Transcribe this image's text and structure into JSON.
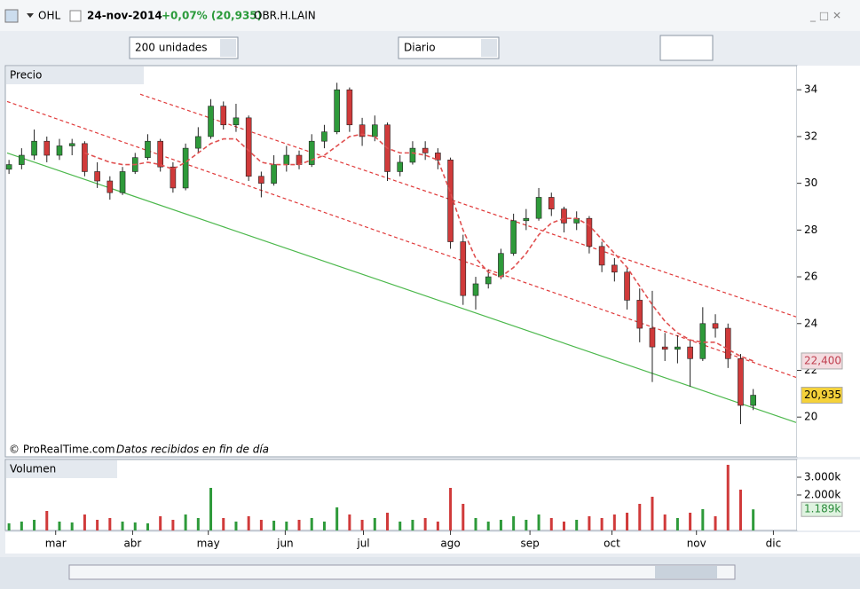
{
  "header": {
    "symbol": "OHL",
    "date": "24-nov-2014",
    "change": "+0,07% (20,935)",
    "code": "OBR.H.LAIN"
  },
  "toolbar": {
    "units": "200 unidades",
    "period": "Diario"
  },
  "panels": {
    "price": "Precio",
    "volume": "Volumen",
    "credit": "© ProRealTime.com",
    "note": "Datos recibidos en fin de día"
  },
  "chart_data": {
    "type": "candlestick",
    "up_color": "#2e9a3a",
    "down_color": "#d03a3a",
    "candles": [
      [
        30.6,
        31.0,
        30.4,
        30.8
      ],
      [
        30.8,
        31.5,
        30.6,
        31.2
      ],
      [
        31.2,
        32.3,
        31.0,
        31.8
      ],
      [
        31.8,
        32.0,
        30.9,
        31.2
      ],
      [
        31.2,
        31.9,
        31.0,
        31.6
      ],
      [
        31.6,
        31.9,
        31.2,
        31.7
      ],
      [
        31.7,
        31.8,
        30.3,
        30.5
      ],
      [
        30.5,
        30.9,
        29.8,
        30.1
      ],
      [
        30.1,
        30.3,
        29.3,
        29.6
      ],
      [
        29.6,
        30.7,
        29.5,
        30.5
      ],
      [
        30.5,
        31.3,
        30.4,
        31.1
      ],
      [
        31.1,
        32.1,
        31.0,
        31.8
      ],
      [
        31.8,
        31.9,
        30.5,
        30.7
      ],
      [
        30.7,
        30.9,
        29.6,
        29.8
      ],
      [
        29.8,
        31.7,
        29.7,
        31.5
      ],
      [
        31.5,
        32.4,
        31.3,
        32.0
      ],
      [
        32.0,
        33.6,
        31.9,
        33.3
      ],
      [
        33.3,
        33.5,
        32.3,
        32.5
      ],
      [
        32.5,
        33.4,
        32.2,
        32.8
      ],
      [
        32.8,
        32.9,
        30.1,
        30.3
      ],
      [
        30.3,
        30.5,
        29.4,
        30.0
      ],
      [
        30.0,
        31.2,
        29.9,
        30.8
      ],
      [
        30.8,
        31.6,
        30.5,
        31.2
      ],
      [
        31.2,
        31.4,
        30.6,
        30.8
      ],
      [
        30.8,
        32.1,
        30.7,
        31.8
      ],
      [
        31.8,
        32.5,
        31.5,
        32.2
      ],
      [
        32.2,
        34.3,
        32.1,
        34.0
      ],
      [
        34.0,
        34.1,
        32.2,
        32.5
      ],
      [
        32.5,
        32.8,
        31.6,
        32.0
      ],
      [
        32.0,
        32.9,
        31.8,
        32.5
      ],
      [
        32.5,
        32.6,
        30.1,
        30.5
      ],
      [
        30.5,
        31.2,
        30.3,
        30.9
      ],
      [
        30.9,
        31.8,
        30.8,
        31.5
      ],
      [
        31.5,
        31.8,
        31.0,
        31.3
      ],
      [
        31.3,
        31.5,
        30.6,
        31.0
      ],
      [
        31.0,
        31.1,
        27.2,
        27.5
      ],
      [
        27.5,
        27.8,
        24.8,
        25.2
      ],
      [
        25.2,
        26.0,
        24.6,
        25.7
      ],
      [
        25.7,
        26.3,
        25.5,
        26.0
      ],
      [
        26.0,
        27.2,
        25.9,
        27.0
      ],
      [
        27.0,
        28.7,
        26.9,
        28.4
      ],
      [
        28.4,
        28.9,
        28.0,
        28.5
      ],
      [
        28.5,
        29.8,
        28.4,
        29.4
      ],
      [
        29.4,
        29.6,
        28.6,
        28.9
      ],
      [
        28.9,
        29.0,
        27.9,
        28.3
      ],
      [
        28.3,
        28.8,
        28.0,
        28.5
      ],
      [
        28.5,
        28.6,
        27.0,
        27.3
      ],
      [
        27.3,
        27.5,
        26.2,
        26.5
      ],
      [
        26.5,
        26.8,
        25.8,
        26.2
      ],
      [
        26.2,
        26.4,
        24.6,
        25.0
      ],
      [
        25.0,
        25.5,
        23.2,
        23.8
      ],
      [
        23.8,
        25.4,
        21.5,
        23.0
      ],
      [
        23.0,
        23.6,
        22.4,
        22.9
      ],
      [
        22.9,
        23.5,
        22.3,
        23.0
      ],
      [
        23.0,
        23.3,
        21.3,
        22.5
      ],
      [
        22.5,
        24.7,
        22.4,
        24.0
      ],
      [
        24.0,
        24.4,
        23.4,
        23.8
      ],
      [
        23.8,
        24.0,
        22.1,
        22.5
      ],
      [
        22.5,
        22.7,
        19.7,
        20.5
      ],
      [
        20.5,
        21.2,
        20.3,
        20.935
      ]
    ],
    "moving_average": {
      "color": "#e05050",
      "values": [
        null,
        null,
        null,
        null,
        null,
        null,
        31.3,
        31.1,
        30.9,
        30.8,
        30.8,
        30.9,
        30.8,
        30.6,
        30.9,
        31.3,
        31.7,
        31.9,
        31.9,
        31.4,
        30.9,
        30.8,
        30.8,
        30.8,
        31.0,
        31.2,
        31.6,
        32.0,
        32.1,
        32.0,
        31.5,
        31.3,
        31.3,
        31.2,
        31.0,
        29.6,
        28.0,
        26.8,
        26.2,
        26.0,
        26.4,
        27.0,
        27.8,
        28.3,
        28.5,
        28.5,
        28.2,
        27.6,
        27.0,
        26.4,
        25.6,
        24.8,
        24.1,
        23.6,
        23.3,
        23.2,
        23.2,
        22.9,
        22.6,
        22.4
      ]
    },
    "trendlines": [
      {
        "color": "#4cb84c",
        "dashed": false,
        "points": [
          [
            -0.15,
            31.3
          ],
          [
            62.4,
            19.77
          ]
        ]
      },
      {
        "color": "#e03a3a",
        "dashed": true,
        "points": [
          [
            10.4,
            33.81
          ],
          [
            62.4,
            24.29
          ]
        ]
      },
      {
        "color": "#e03a3a",
        "dashed": true,
        "points": [
          [
            -0.15,
            33.5
          ],
          [
            62.4,
            21.7
          ]
        ]
      }
    ],
    "xlim": [
      -0.15,
      62.4
    ],
    "ylim": [
      18.3,
      34.35
    ],
    "yticks": [
      20,
      22,
      24,
      26,
      28,
      30,
      32,
      34
    ],
    "xticks": [
      {
        "value": 3.7,
        "label": "mar"
      },
      {
        "value": 9.8,
        "label": "abr"
      },
      {
        "value": 15.8,
        "label": "may"
      },
      {
        "value": 21.9,
        "label": "jun"
      },
      {
        "value": 28.1,
        "label": "jul"
      },
      {
        "value": 35,
        "label": "ago"
      },
      {
        "value": 41.3,
        "label": "sep"
      },
      {
        "value": 47.8,
        "label": "oct"
      },
      {
        "value": 54.5,
        "label": "nov"
      },
      {
        "value": 60.6,
        "label": "dic"
      }
    ],
    "price_markers": [
      {
        "value": 22.4,
        "label": "22,400",
        "color": "#f4dce0",
        "text_color": "#c04050"
      },
      {
        "value": 20.935,
        "label": "20,935",
        "color": "#f5d23a",
        "text_color": "#000000"
      }
    ],
    "volumes": [
      400,
      500,
      600,
      1100,
      500,
      450,
      900,
      600,
      700,
      500,
      450,
      400,
      800,
      600,
      900,
      700,
      2400,
      700,
      500,
      800,
      600,
      550,
      500,
      600,
      700,
      500,
      1300,
      900,
      600,
      700,
      1000,
      500,
      600,
      700,
      500,
      2400,
      1500,
      700,
      500,
      600,
      800,
      600,
      900,
      700,
      500,
      600,
      800,
      700,
      900,
      1000,
      1500,
      1900,
      900,
      700,
      1000,
      1200,
      800,
      3700,
      2300,
      1189
    ],
    "volume_ylim": [
      0,
      3800
    ],
    "volume_yticks": [
      {
        "value": 2000,
        "label": "2.000k"
      },
      {
        "value": 3000,
        "label": "3.000k"
      }
    ],
    "volume_marker": {
      "value": 1189,
      "label": "1.189k"
    }
  }
}
